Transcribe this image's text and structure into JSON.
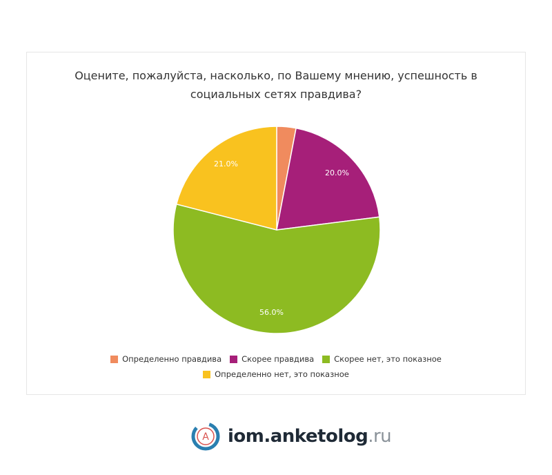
{
  "chart_data": {
    "type": "pie",
    "title": "Оцените, пожалуйста, насколько, по Вашему мнению, успешность в социальных сетях правдива?",
    "categories": [
      "Определенно правдива",
      "Скорее правдива",
      "Скорее нет, это показное",
      "Определенно нет, это показное"
    ],
    "values": [
      3,
      20,
      56,
      21
    ],
    "value_labels": [
      null,
      "20.0%",
      "56.0%",
      "21.0%"
    ],
    "colors": [
      "#f08b5e",
      "#a61f79",
      "#8dbb22",
      "#f9c21f"
    ]
  },
  "footer": {
    "logo_letter": "A",
    "brand": "iom.anketolog",
    "domain": ".ru"
  }
}
